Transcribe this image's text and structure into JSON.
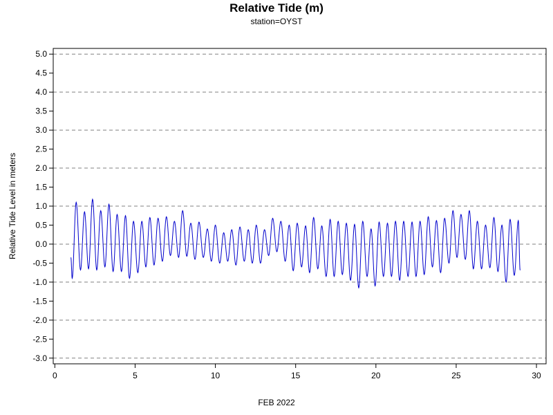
{
  "chart_data": {
    "type": "line",
    "title": "Relative Tide (m)",
    "subtitle": "station=OYST",
    "xlabel": "FEB 2022",
    "ylabel": "Relative Tide Level in meters",
    "xlim": [
      -0.1,
      30.6
    ],
    "ylim": [
      -3.15,
      5.15
    ],
    "x_ticks": [
      0,
      5,
      10,
      15,
      20,
      25,
      30
    ],
    "x_tick_labels": [
      "0",
      "5",
      "10",
      "15",
      "20",
      "25",
      "30"
    ],
    "y_ticks": [
      5.0,
      4.5,
      4.0,
      3.5,
      3.0,
      2.5,
      2.0,
      1.5,
      1.0,
      0.5,
      0.0,
      -0.5,
      -1.0,
      -1.5,
      -2.0,
      -2.5,
      -3.0
    ],
    "y_tick_labels": [
      "5.0",
      "4.5",
      "4.0",
      "3.5",
      "3.0",
      "2.5",
      "2.0",
      "1.5",
      "1.0",
      "0.5",
      "0.0",
      "-0.5",
      "-1.0",
      "-1.5",
      "-2.0",
      "-2.5",
      "-3.0"
    ],
    "grid": {
      "y_dashed_at": [
        5.0,
        4.0,
        3.0,
        2.0,
        1.0,
        0.0,
        -1.0,
        -2.0,
        -3.0
      ]
    },
    "series": [
      {
        "color": "#0000cc",
        "x_range": [
          1.0,
          29.0
        ],
        "highs": [
          [
            1.33,
            1.1
          ],
          [
            1.85,
            0.85
          ],
          [
            2.35,
            1.18
          ],
          [
            2.86,
            0.88
          ],
          [
            3.37,
            1.05
          ],
          [
            3.88,
            0.78
          ],
          [
            4.4,
            0.75
          ],
          [
            4.9,
            0.6
          ],
          [
            5.42,
            0.6
          ],
          [
            5.92,
            0.7
          ],
          [
            6.43,
            0.68
          ],
          [
            6.95,
            0.72
          ],
          [
            7.45,
            0.6
          ],
          [
            7.96,
            0.88
          ],
          [
            8.47,
            0.55
          ],
          [
            8.98,
            0.58
          ],
          [
            9.5,
            0.4
          ],
          [
            10.0,
            0.5
          ],
          [
            10.52,
            0.3
          ],
          [
            11.02,
            0.38
          ],
          [
            11.53,
            0.45
          ],
          [
            12.05,
            0.38
          ],
          [
            12.55,
            0.5
          ],
          [
            13.06,
            0.38
          ],
          [
            13.57,
            0.68
          ],
          [
            14.08,
            0.6
          ],
          [
            14.6,
            0.5
          ],
          [
            15.1,
            0.55
          ],
          [
            15.62,
            0.48
          ],
          [
            16.12,
            0.7
          ],
          [
            16.63,
            0.48
          ],
          [
            17.15,
            0.65
          ],
          [
            17.65,
            0.6
          ],
          [
            18.16,
            0.55
          ],
          [
            18.67,
            0.52
          ],
          [
            19.18,
            0.6
          ],
          [
            19.7,
            0.4
          ],
          [
            20.2,
            0.58
          ],
          [
            20.72,
            0.55
          ],
          [
            21.22,
            0.6
          ],
          [
            21.73,
            0.6
          ],
          [
            22.25,
            0.58
          ],
          [
            22.75,
            0.6
          ],
          [
            23.26,
            0.72
          ],
          [
            23.77,
            0.62
          ],
          [
            24.28,
            0.68
          ],
          [
            24.8,
            0.88
          ],
          [
            25.3,
            0.78
          ],
          [
            25.82,
            0.88
          ],
          [
            26.32,
            0.6
          ],
          [
            26.83,
            0.5
          ],
          [
            27.35,
            0.7
          ],
          [
            27.85,
            0.5
          ],
          [
            28.36,
            0.65
          ],
          [
            28.87,
            0.62
          ]
        ],
        "lows": [
          [
            1.08,
            -0.9
          ],
          [
            1.6,
            -0.68
          ],
          [
            2.1,
            -0.65
          ],
          [
            2.61,
            -0.68
          ],
          [
            3.12,
            -0.6
          ],
          [
            3.63,
            -0.72
          ],
          [
            4.15,
            -0.72
          ],
          [
            4.65,
            -0.9
          ],
          [
            5.17,
            -0.75
          ],
          [
            5.67,
            -0.6
          ],
          [
            6.18,
            -0.55
          ],
          [
            6.7,
            -0.45
          ],
          [
            7.2,
            -0.3
          ],
          [
            7.71,
            -0.35
          ],
          [
            8.22,
            -0.32
          ],
          [
            8.73,
            -0.4
          ],
          [
            9.25,
            -0.35
          ],
          [
            9.75,
            -0.45
          ],
          [
            10.27,
            -0.5
          ],
          [
            10.77,
            -0.45
          ],
          [
            11.28,
            -0.55
          ],
          [
            11.8,
            -0.45
          ],
          [
            12.3,
            -0.5
          ],
          [
            12.81,
            -0.5
          ],
          [
            13.32,
            -0.3
          ],
          [
            13.83,
            -0.2
          ],
          [
            14.35,
            -0.45
          ],
          [
            14.85,
            -0.7
          ],
          [
            15.37,
            -0.6
          ],
          [
            15.87,
            -0.75
          ],
          [
            16.38,
            -0.65
          ],
          [
            16.9,
            -0.85
          ],
          [
            17.4,
            -0.85
          ],
          [
            17.91,
            -0.8
          ],
          [
            18.42,
            -0.95
          ],
          [
            18.93,
            -1.15
          ],
          [
            19.45,
            -0.85
          ],
          [
            19.95,
            -1.1
          ],
          [
            20.47,
            -0.85
          ],
          [
            20.97,
            -0.85
          ],
          [
            21.48,
            -0.95
          ],
          [
            22.0,
            -0.85
          ],
          [
            22.5,
            -0.85
          ],
          [
            23.01,
            -0.8
          ],
          [
            23.52,
            -0.6
          ],
          [
            24.03,
            -0.75
          ],
          [
            24.55,
            -0.5
          ],
          [
            25.05,
            -0.35
          ],
          [
            25.57,
            -0.4
          ],
          [
            26.07,
            -0.65
          ],
          [
            26.58,
            -0.65
          ],
          [
            27.1,
            -0.62
          ],
          [
            27.6,
            -0.72
          ],
          [
            28.11,
            -1.0
          ],
          [
            28.62,
            -0.82
          ],
          [
            28.98,
            -0.68
          ]
        ]
      }
    ]
  }
}
